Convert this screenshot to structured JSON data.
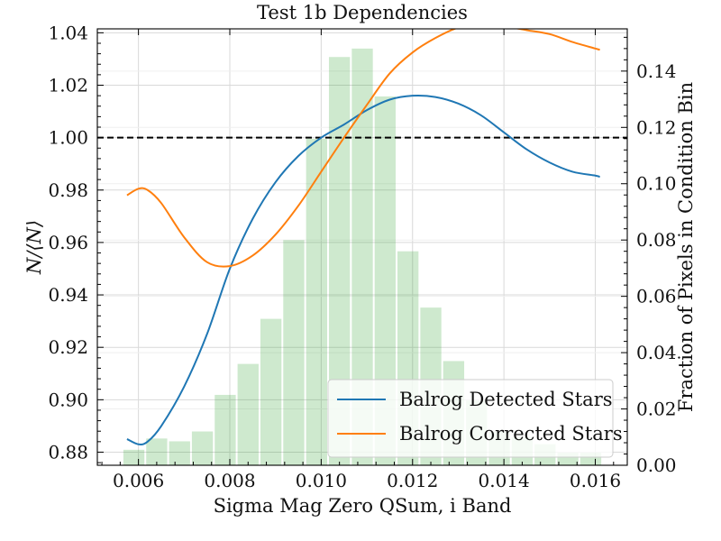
{
  "chart_data": {
    "type": "line",
    "title": "Test 1b Dependencies",
    "xlabel": "Sigma Mag Zero QSum, i Band",
    "ylabel": "N/⟨N⟩",
    "y2label": "Fraction of Pixels in Condition Bin",
    "xlim": [
      0.0051,
      0.0167
    ],
    "ylim": [
      0.875,
      1.0415
    ],
    "y2lim": [
      0.0,
      0.155
    ],
    "x_ticks": [
      0.006,
      0.008,
      0.01,
      0.012,
      0.014,
      0.016
    ],
    "x_tick_labels": [
      "0.006",
      "0.008",
      "0.010",
      "0.012",
      "0.014",
      "0.016"
    ],
    "y_ticks": [
      0.88,
      0.9,
      0.92,
      0.94,
      0.96,
      0.98,
      1.0,
      1.02,
      1.04
    ],
    "y_tick_labels": [
      "0.88",
      "0.90",
      "0.92",
      "0.94",
      "0.96",
      "0.98",
      "1.00",
      "1.02",
      "1.04"
    ],
    "y2_ticks": [
      0.0,
      0.02,
      0.04,
      0.06,
      0.08,
      0.1,
      0.12,
      0.14
    ],
    "y2_tick_labels": [
      "0.00",
      "0.02",
      "0.04",
      "0.06",
      "0.08",
      "0.10",
      "0.12",
      "0.14"
    ],
    "grid": true,
    "reference_line": {
      "y": 1.0,
      "style": "dashed",
      "color": "#000000"
    },
    "histogram": {
      "color": "#2ca02c",
      "opacity": 0.23,
      "bin_edges": [
        0.00565,
        0.00615,
        0.00665,
        0.00715,
        0.00765,
        0.00815,
        0.00865,
        0.00915,
        0.00965,
        0.01015,
        0.01065,
        0.01115,
        0.01165,
        0.01215,
        0.01265,
        0.01315,
        0.01365,
        0.01415,
        0.01465,
        0.01515,
        0.01565,
        0.01615
      ],
      "values": [
        0.0055,
        0.0095,
        0.0085,
        0.012,
        0.025,
        0.036,
        0.052,
        0.08,
        0.116,
        0.145,
        0.148,
        0.131,
        0.076,
        0.056,
        0.037,
        0.023,
        0.012,
        0.01,
        0.0075,
        0.0045,
        0.0045
      ]
    },
    "series": [
      {
        "name": "Balrog Detected Stars",
        "color": "#1f77b4",
        "x": [
          0.00575,
          0.006,
          0.0062,
          0.0065,
          0.007,
          0.0075,
          0.008,
          0.0085,
          0.009,
          0.0095,
          0.01,
          0.0105,
          0.011,
          0.0115,
          0.012,
          0.0125,
          0.013,
          0.0135,
          0.014,
          0.0145,
          0.015,
          0.0155,
          0.016,
          0.0161
        ],
        "y": [
          0.885,
          0.883,
          0.884,
          0.89,
          0.905,
          0.925,
          0.95,
          0.969,
          0.983,
          0.993,
          1.0,
          1.005,
          1.0105,
          1.0145,
          1.016,
          1.0155,
          1.013,
          1.0085,
          1.002,
          0.9955,
          0.9905,
          0.987,
          0.9855,
          0.985
        ]
      },
      {
        "name": "Balrog Corrected Stars",
        "color": "#ff7f0e",
        "x": [
          0.00575,
          0.006,
          0.0062,
          0.0065,
          0.007,
          0.0075,
          0.008,
          0.0085,
          0.009,
          0.0095,
          0.01,
          0.0105,
          0.011,
          0.0115,
          0.012,
          0.0125,
          0.013,
          0.0135,
          0.014,
          0.0145,
          0.015,
          0.0155,
          0.016,
          0.0161
        ],
        "y": [
          0.978,
          0.9805,
          0.98,
          0.975,
          0.962,
          0.9525,
          0.951,
          0.955,
          0.963,
          0.974,
          0.987,
          1.0,
          1.0125,
          1.0245,
          1.0325,
          1.038,
          1.042,
          1.0435,
          1.0425,
          1.041,
          1.0395,
          1.0365,
          1.034,
          1.0335
        ]
      }
    ],
    "legend": {
      "position": "lower right",
      "entries": [
        "Balrog Detected Stars",
        "Balrog Corrected Stars"
      ]
    }
  }
}
